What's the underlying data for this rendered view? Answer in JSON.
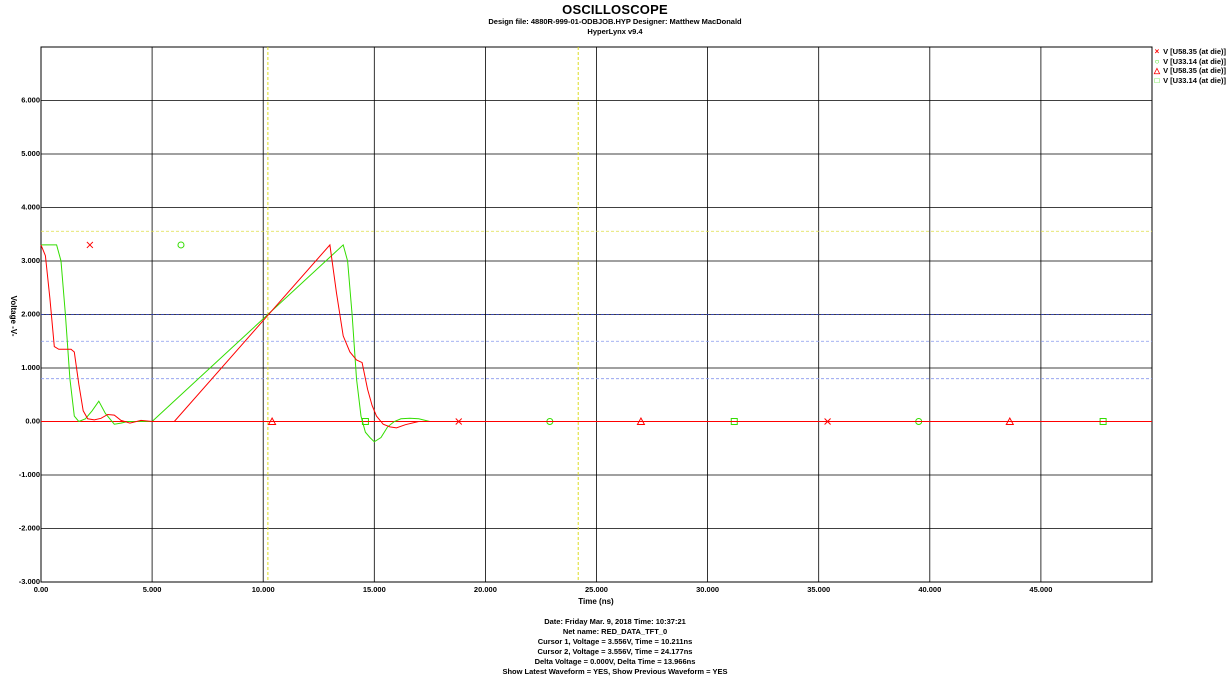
{
  "header": {
    "title": "OSCILLOSCOPE",
    "line1": "Design file: 4880R-999-01-ODBJOB.HYP        Designer: Matthew MacDonald",
    "line2": "HyperLynx v9.4"
  },
  "chart_data": {
    "type": "line",
    "xlabel": "Time  (ns)",
    "ylabel": "Voltage  -V-",
    "xlim": [
      0,
      50
    ],
    "ylim": [
      -3,
      7
    ],
    "x_ticks": [
      "0.00",
      "5.000",
      "10.000",
      "15.000",
      "20.000",
      "25.000",
      "30.000",
      "35.000",
      "40.000",
      "45.000"
    ],
    "y_ticks": [
      "-3.000",
      "-2.000",
      "-1.000",
      "0.00",
      "1.000",
      "2.000",
      "3.000",
      "4.000",
      "5.000",
      "6.000"
    ],
    "grid": true,
    "legend_position": "right-top",
    "series": [
      {
        "name": "V [U58.35 (at die)]",
        "color": "#ff0000",
        "marker": "x",
        "x": [
          0.0,
          0.2,
          0.4,
          0.6,
          0.8,
          1.2,
          1.35,
          1.5,
          1.7,
          1.9,
          2.1,
          2.4,
          2.7,
          3.0,
          3.3,
          3.6,
          4.0,
          4.5,
          5.0,
          6.0,
          13.0,
          13.3,
          13.6,
          13.9,
          14.2,
          14.45,
          14.7,
          14.9,
          15.1,
          15.4,
          15.7,
          16.0,
          16.4,
          17.0,
          18.0,
          50.0
        ],
        "y": [
          3.3,
          3.1,
          2.3,
          1.4,
          1.35,
          1.35,
          1.35,
          1.3,
          0.7,
          0.2,
          0.05,
          0.03,
          0.06,
          0.13,
          0.12,
          0.02,
          -0.03,
          0.02,
          0.0,
          0.0,
          3.3,
          2.4,
          1.6,
          1.3,
          1.15,
          1.1,
          0.6,
          0.3,
          0.1,
          -0.05,
          -0.1,
          -0.12,
          -0.06,
          0.0,
          0.0,
          0.0
        ],
        "marker_points": [
          [
            2.2,
            3.3
          ],
          [
            18.8,
            0.0
          ],
          [
            35.4,
            0.0
          ]
        ]
      },
      {
        "name": "V [U33.14 (at die)]",
        "color": "#33dd00",
        "marker": "o",
        "x": [
          0.0,
          0.7,
          0.9,
          1.1,
          1.3,
          1.5,
          1.7,
          2.0,
          2.3,
          2.6,
          2.9,
          3.3,
          3.6,
          3.9,
          4.3,
          5.0,
          13.6,
          13.8,
          14.0,
          14.2,
          14.4,
          14.6,
          14.8,
          15.0,
          15.3,
          15.6,
          15.9,
          16.2,
          16.6,
          17.0,
          17.5,
          18.0,
          50.0
        ],
        "y": [
          3.3,
          3.3,
          3.0,
          2.0,
          0.8,
          0.1,
          0.0,
          0.05,
          0.2,
          0.38,
          0.15,
          -0.05,
          -0.03,
          0.0,
          0.0,
          0.0,
          3.3,
          3.0,
          2.0,
          0.8,
          0.1,
          -0.2,
          -0.3,
          -0.38,
          -0.3,
          -0.1,
          0.0,
          0.05,
          0.06,
          0.05,
          0.0,
          0.0,
          0.0
        ],
        "marker_points": [
          [
            6.3,
            3.3
          ],
          [
            22.9,
            0.0
          ],
          [
            39.5,
            0.0
          ]
        ]
      },
      {
        "name": "V [U58.35 (at die)]",
        "color": "#ff0000",
        "marker": "triangle",
        "x": [
          0.0,
          50.0
        ],
        "y": [
          0.0,
          0.0
        ],
        "marker_points": [
          [
            10.4,
            0.0
          ],
          [
            27.0,
            0.0
          ],
          [
            43.6,
            0.0
          ]
        ]
      },
      {
        "name": "V [U33.14 (at die)]",
        "color": "#33dd00",
        "marker": "square",
        "x": [
          0.0,
          50.0
        ],
        "y": [
          0.0,
          0.0
        ],
        "marker_points": [
          [
            14.6,
            0.0
          ],
          [
            31.2,
            0.0
          ],
          [
            47.8,
            0.0
          ]
        ]
      }
    ],
    "reference_lines": [
      {
        "orientation": "horizontal",
        "value": 2.0,
        "color": "#3344cc",
        "style": "dashed"
      },
      {
        "orientation": "horizontal",
        "value": 1.5,
        "color": "#8899ee",
        "style": "dashed"
      },
      {
        "orientation": "horizontal",
        "value": 0.8,
        "color": "#8899ee",
        "style": "dashed"
      },
      {
        "orientation": "horizontal",
        "value": 3.556,
        "color": "#dddd44",
        "style": "dashed"
      }
    ],
    "cursors": [
      {
        "time": 10.211,
        "color": "#dddd22"
      },
      {
        "time": 24.177,
        "color": "#dddd22"
      }
    ]
  },
  "footer": {
    "lines": [
      "Date: Friday Mar. 9, 2018   Time: 10:37:21",
      "Net name: RED_DATA_TFT_0",
      "Cursor 1, Voltage = 3.556V, Time = 10.211ns",
      "Cursor 2, Voltage = 3.556V, Time = 24.177ns",
      "Delta Voltage = 0.000V,  Delta Time = 13.966ns",
      "Show Latest Waveform = YES,  Show Previous Waveform = YES"
    ]
  }
}
